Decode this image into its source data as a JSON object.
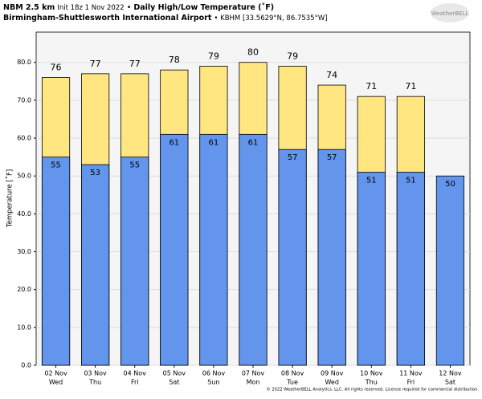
{
  "chart_data": {
    "type": "bar",
    "title": {
      "model": "NBM 2.5 km",
      "init": "Init 18z 1 Nov 2022",
      "sep": "•",
      "product": "Daily High/Low Temperature (˚F)"
    },
    "subtitle": {
      "location": "Birmingham-Shuttlesworth International Airport",
      "station": "• KBHM [33.5629°N, 86.7535°W]"
    },
    "logo": "WeatherBELL",
    "footer": "© 2022 WeatherBELL Analytics, LLC. All rights reserved. License required for commercial distribution.",
    "y_label": "Temperature [˚F]",
    "categories": [
      "02 Nov",
      "03 Nov",
      "04 Nov",
      "05 Nov",
      "06 Nov",
      "07 Nov",
      "08 Nov",
      "09 Nov",
      "10 Nov",
      "11 Nov",
      "12 Nov"
    ],
    "weekdays": [
      "Wed",
      "Thu",
      "Fri",
      "Sat",
      "Sun",
      "Mon",
      "Tue",
      "Wed",
      "Thu",
      "Fri",
      "Sat"
    ],
    "series": [
      {
        "color": "#ffe680",
        "values": [
          76,
          77,
          77,
          78,
          79,
          80,
          79,
          74,
          71,
          71,
          null
        ]
      },
      {
        "color": "#6495ed",
        "values": [
          55,
          53,
          55,
          61,
          61,
          61,
          57,
          57,
          51,
          51,
          50
        ]
      }
    ],
    "ylim": [
      0,
      88
    ],
    "yticks": [
      {
        "value": 0,
        "label": "0.0"
      },
      {
        "value": 10,
        "label": "10.0"
      },
      {
        "value": 20,
        "label": "20.0"
      },
      {
        "value": 30,
        "label": "30.0"
      },
      {
        "value": 40,
        "label": "40.0"
      },
      {
        "value": 50,
        "label": "50.0"
      },
      {
        "value": 60,
        "label": "60.0"
      },
      {
        "value": 70,
        "label": "70.0"
      },
      {
        "value": 80,
        "label": "80.0"
      }
    ],
    "grid": true
  }
}
